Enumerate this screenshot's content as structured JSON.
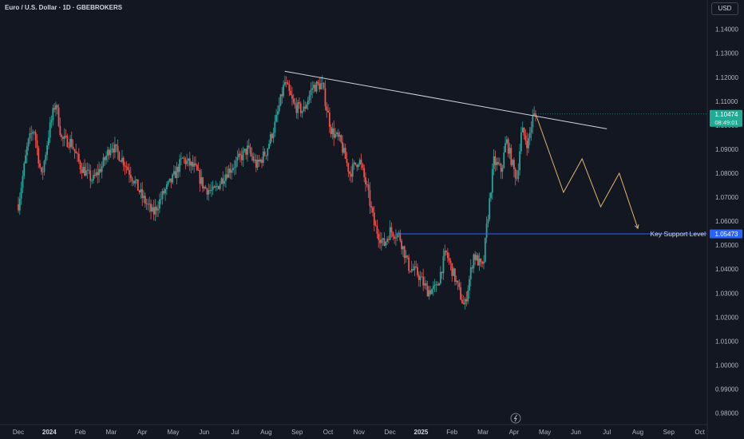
{
  "header": {
    "title": "Euro / U.S. Dollar · 1D · GBEBROKERS",
    "currency_button": "USD"
  },
  "colors": {
    "background": "#131722",
    "up": "#26a69a",
    "down": "#ef5350",
    "trendline": "#d1d4dc",
    "projection": "#e3b36b",
    "support": "#2962ff",
    "price_tag": "#22ab94"
  },
  "chart_data": {
    "type": "candlestick",
    "symbol": "EURUSD",
    "timeframe": "1D",
    "y_ticks": [
      "1.14000",
      "1.13000",
      "1.12000",
      "1.11000",
      "1.10000",
      "1.09000",
      "1.08000",
      "1.07000",
      "1.06000",
      "1.05000",
      "1.04000",
      "1.03000",
      "1.02000",
      "1.01000",
      "1.00000",
      "0.99000",
      "0.98000"
    ],
    "x_ticks": [
      {
        "label": "Dec",
        "bold": false
      },
      {
        "label": "2024",
        "bold": true
      },
      {
        "label": "Feb",
        "bold": false
      },
      {
        "label": "Mar",
        "bold": false
      },
      {
        "label": "Apr",
        "bold": false
      },
      {
        "label": "May",
        "bold": false
      },
      {
        "label": "Jun",
        "bold": false
      },
      {
        "label": "Jul",
        "bold": false
      },
      {
        "label": "Aug",
        "bold": false
      },
      {
        "label": "Sep",
        "bold": false
      },
      {
        "label": "Oct",
        "bold": false
      },
      {
        "label": "Nov",
        "bold": false
      },
      {
        "label": "Dec",
        "bold": false
      },
      {
        "label": "2025",
        "bold": true
      },
      {
        "label": "Feb",
        "bold": false
      },
      {
        "label": "Mar",
        "bold": false
      },
      {
        "label": "Apr",
        "bold": false
      },
      {
        "label": "May",
        "bold": false
      },
      {
        "label": "Jun",
        "bold": false
      },
      {
        "label": "Jul",
        "bold": false
      },
      {
        "label": "Aug",
        "bold": false
      },
      {
        "label": "Sep",
        "bold": false
      },
      {
        "label": "Oct",
        "bold": false
      }
    ],
    "ylim": [
      0.9752,
      1.1522
    ],
    "price_path": [
      {
        "month": 0.0,
        "price": 1.067
      },
      {
        "month": 0.3,
        "price": 1.092
      },
      {
        "month": 0.5,
        "price": 1.099
      },
      {
        "month": 0.75,
        "price": 1.078
      },
      {
        "month": 1.0,
        "price": 1.098
      },
      {
        "month": 1.2,
        "price": 1.11
      },
      {
        "month": 1.4,
        "price": 1.094
      },
      {
        "month": 1.7,
        "price": 1.093
      },
      {
        "month": 2.0,
        "price": 1.083
      },
      {
        "month": 2.4,
        "price": 1.077
      },
      {
        "month": 2.7,
        "price": 1.083
      },
      {
        "month": 3.0,
        "price": 1.092
      },
      {
        "month": 3.4,
        "price": 1.085
      },
      {
        "month": 3.7,
        "price": 1.078
      },
      {
        "month": 4.0,
        "price": 1.07
      },
      {
        "month": 4.35,
        "price": 1.063
      },
      {
        "month": 4.7,
        "price": 1.072
      },
      {
        "month": 5.0,
        "price": 1.078
      },
      {
        "month": 5.3,
        "price": 1.086
      },
      {
        "month": 5.7,
        "price": 1.082
      },
      {
        "month": 6.0,
        "price": 1.074
      },
      {
        "month": 6.3,
        "price": 1.072
      },
      {
        "month": 6.7,
        "price": 1.08
      },
      {
        "month": 7.0,
        "price": 1.084
      },
      {
        "month": 7.4,
        "price": 1.09
      },
      {
        "month": 7.7,
        "price": 1.083
      },
      {
        "month": 8.0,
        "price": 1.089
      },
      {
        "month": 8.3,
        "price": 1.101
      },
      {
        "month": 8.6,
        "price": 1.118
      },
      {
        "month": 8.9,
        "price": 1.108
      },
      {
        "month": 9.2,
        "price": 1.106
      },
      {
        "month": 9.5,
        "price": 1.116
      },
      {
        "month": 9.8,
        "price": 1.117
      },
      {
        "month": 10.1,
        "price": 1.098
      },
      {
        "month": 10.4,
        "price": 1.093
      },
      {
        "month": 10.7,
        "price": 1.08
      },
      {
        "month": 11.0,
        "price": 1.086
      },
      {
        "month": 11.25,
        "price": 1.074
      },
      {
        "month": 11.5,
        "price": 1.058
      },
      {
        "month": 11.8,
        "price": 1.05
      },
      {
        "month": 12.0,
        "price": 1.056
      },
      {
        "month": 12.3,
        "price": 1.054
      },
      {
        "month": 12.6,
        "price": 1.041
      },
      {
        "month": 12.9,
        "price": 1.038
      },
      {
        "month": 13.2,
        "price": 1.031
      },
      {
        "month": 13.5,
        "price": 1.032
      },
      {
        "month": 13.8,
        "price": 1.047
      },
      {
        "month": 14.1,
        "price": 1.036
      },
      {
        "month": 14.4,
        "price": 1.024
      },
      {
        "month": 14.7,
        "price": 1.046
      },
      {
        "month": 15.0,
        "price": 1.04
      },
      {
        "month": 15.1,
        "price": 1.055
      },
      {
        "month": 15.2,
        "price": 1.067
      },
      {
        "month": 15.35,
        "price": 1.085
      },
      {
        "month": 15.6,
        "price": 1.081
      },
      {
        "month": 15.75,
        "price": 1.094
      },
      {
        "month": 16.0,
        "price": 1.081
      },
      {
        "month": 16.1,
        "price": 1.078
      },
      {
        "month": 16.25,
        "price": 1.098
      },
      {
        "month": 16.45,
        "price": 1.092
      },
      {
        "month": 16.6,
        "price": 1.103
      },
      {
        "month": 16.7,
        "price": 1.1047
      }
    ],
    "trendline": [
      {
        "month": 8.6,
        "price": 1.1225
      },
      {
        "month": 19.0,
        "price": 1.0985
      }
    ],
    "projection_path": [
      {
        "month": 16.7,
        "price": 1.1047
      },
      {
        "month": 17.6,
        "price": 1.072
      },
      {
        "month": 18.2,
        "price": 1.086
      },
      {
        "month": 18.8,
        "price": 1.066
      },
      {
        "month": 19.4,
        "price": 1.08
      },
      {
        "month": 20.0,
        "price": 1.057
      }
    ],
    "support": {
      "price": 1.0547,
      "from_month": 12.2,
      "label": "Key Support Level",
      "tag": "1.05473"
    },
    "last_price": {
      "tag": "1.10474",
      "timer": "08:49:01",
      "value": 1.1047
    }
  }
}
